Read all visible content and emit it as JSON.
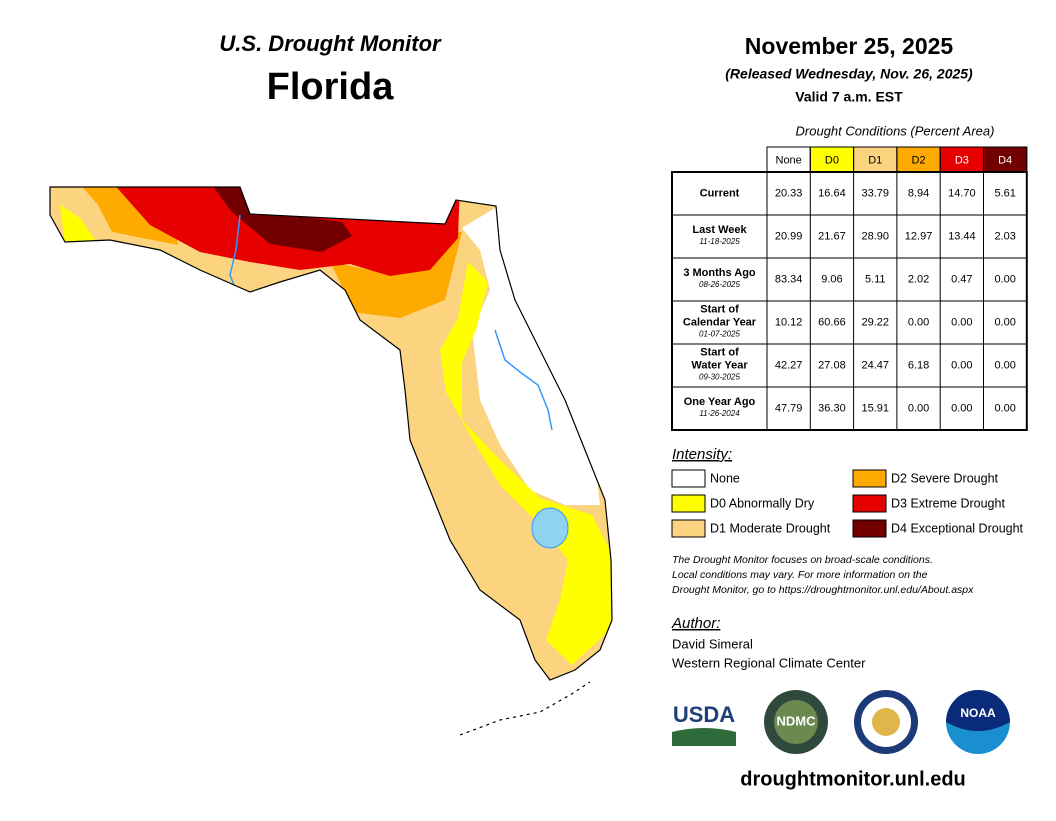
{
  "header": {
    "title": "U.S. Drought Monitor",
    "state": "Florida",
    "date": "November 25, 2025",
    "released": "(Released Wednesday, Nov. 26, 2025)",
    "valid": "Valid 7 a.m. EST"
  },
  "table": {
    "caption": "Drought Conditions (Percent Area)",
    "columns": [
      {
        "label": "None",
        "color": "#ffffff",
        "text": "#000000"
      },
      {
        "label": "D0",
        "color": "#ffff00",
        "text": "#000000"
      },
      {
        "label": "D1",
        "color": "#fcd37f",
        "text": "#000000"
      },
      {
        "label": "D2",
        "color": "#ffaa00",
        "text": "#000000"
      },
      {
        "label": "D3",
        "color": "#e60000",
        "text": "#ffffff"
      },
      {
        "label": "D4",
        "color": "#730000",
        "text": "#ffffff"
      }
    ],
    "rows": [
      {
        "label": [
          "Current"
        ],
        "cells": [
          "20.33",
          "16.64",
          "33.79",
          "8.94",
          "14.70",
          "5.61"
        ]
      },
      {
        "label": [
          "Last Week"
        ],
        "date": "11-18-2025",
        "cells": [
          "20.99",
          "21.67",
          "28.90",
          "12.97",
          "13.44",
          "2.03"
        ]
      },
      {
        "label": [
          "3 Months Ago"
        ],
        "date": "08-26-2025",
        "cells": [
          "83.34",
          "9.06",
          "5.11",
          "2.02",
          "0.47",
          "0.00"
        ]
      },
      {
        "label": [
          "Start of",
          "Calendar Year"
        ],
        "date": "01-07-2025",
        "cells": [
          "10.12",
          "60.66",
          "29.22",
          "0.00",
          "0.00",
          "0.00"
        ]
      },
      {
        "label": [
          "Start of",
          "Water Year"
        ],
        "date": "09-30-2025",
        "cells": [
          "42.27",
          "27.08",
          "24.47",
          "6.18",
          "0.00",
          "0.00"
        ]
      },
      {
        "label": [
          "One Year Ago"
        ],
        "date": "11-26-2024",
        "cells": [
          "47.79",
          "36.30",
          "15.91",
          "0.00",
          "0.00",
          "0.00"
        ]
      }
    ]
  },
  "legend": {
    "title": "Intensity:",
    "items": [
      {
        "label": "None",
        "color": "#ffffff"
      },
      {
        "label": "D0 Abnormally Dry",
        "color": "#ffff00"
      },
      {
        "label": "D1 Moderate Drought",
        "color": "#fcd37f"
      },
      {
        "label": "D2 Severe Drought",
        "color": "#ffaa00"
      },
      {
        "label": "D3 Extreme Drought",
        "color": "#e60000"
      },
      {
        "label": "D4 Exceptional Drought",
        "color": "#730000"
      }
    ]
  },
  "note": [
    "The Drought Monitor focuses on broad-scale conditions.",
    "Local conditions may vary. For more information on the",
    "Drought Monitor, go to https://droughtmonitor.unl.edu/About.aspx"
  ],
  "author": {
    "title": "Author:",
    "lines": [
      "David Simeral",
      "Western Regional Climate Center"
    ]
  },
  "logos": [
    "USDA",
    "NDMC",
    "NOAA"
  ],
  "url": "droughtmonitor.unl.edu"
}
